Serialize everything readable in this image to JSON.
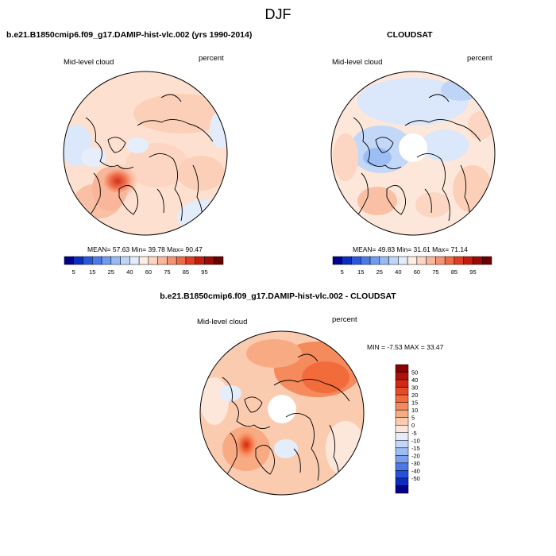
{
  "title": "DJF",
  "panels": [
    {
      "title": "b.e21.B1850cmip6.f09_g17.DAMIP-hist-vlc.002 (yrs 1990-2014)",
      "left_label": "Mid-level cloud",
      "right_label": "percent",
      "stats": "MEAN=  57.63  Min=  39.78  Max=  90.47"
    },
    {
      "title": "CLOUDSAT",
      "left_label": "Mid-level cloud",
      "right_label": "percent",
      "stats": "MEAN=  49.83  Min=  31.61  Max=  71.14"
    },
    {
      "title": "b.e21.B1850cmip6.f09_g17.DAMIP-hist-vlc.002 - CLOUDSAT",
      "left_label": "Mid-level cloud",
      "right_label": "percent",
      "stats": "MIN =  -7.53 MAX =  33.47"
    }
  ],
  "chart_data": [
    {
      "type": "heatmap",
      "projection": "north polar stereographic",
      "title": "b.e21.B1850cmip6.f09_g17.DAMIP-hist-vlc.002 (yrs 1990-2014)",
      "variable": "Mid-level cloud",
      "units": "percent",
      "mean": 57.63,
      "min": 39.78,
      "max": 90.47,
      "colorbar": {
        "orientation": "horizontal",
        "levels": [
          5,
          10,
          15,
          20,
          25,
          30,
          40,
          50,
          60,
          65,
          70,
          75,
          80,
          85,
          90,
          95
        ],
        "tick_labels": [
          "5",
          "15",
          "25",
          "40",
          "60",
          "75",
          "85",
          "95"
        ],
        "colors": [
          "#00008d",
          "#0b2ec2",
          "#2a57de",
          "#4a7be9",
          "#6f9cf0",
          "#97baf4",
          "#bed5f7",
          "#e2ecfa",
          "#fdeee4",
          "#fcd6c2",
          "#f9b69a",
          "#f59372",
          "#ef6a47",
          "#e03e22",
          "#c41b0b",
          "#9b0a05",
          "#6c0000"
        ]
      }
    },
    {
      "type": "heatmap",
      "projection": "north polar stereographic",
      "title": "CLOUDSAT",
      "variable": "Mid-level cloud",
      "units": "percent",
      "mean": 49.83,
      "min": 31.61,
      "max": 71.14,
      "colorbar": {
        "orientation": "horizontal",
        "levels": [
          5,
          10,
          15,
          20,
          25,
          30,
          40,
          50,
          60,
          65,
          70,
          75,
          80,
          85,
          90,
          95
        ],
        "tick_labels": [
          "5",
          "15",
          "25",
          "40",
          "60",
          "75",
          "85",
          "95"
        ],
        "colors": [
          "#00008d",
          "#0b2ec2",
          "#2a57de",
          "#4a7be9",
          "#6f9cf0",
          "#97baf4",
          "#bed5f7",
          "#e2ecfa",
          "#fdeee4",
          "#fcd6c2",
          "#f9b69a",
          "#f59372",
          "#ef6a47",
          "#e03e22",
          "#c41b0b",
          "#9b0a05",
          "#6c0000"
        ]
      }
    },
    {
      "type": "heatmap",
      "projection": "north polar stereographic",
      "title": "b.e21.B1850cmip6.f09_g17.DAMIP-hist-vlc.002 - CLOUDSAT",
      "variable": "Mid-level cloud",
      "units": "percent",
      "min": -7.53,
      "max": 33.47,
      "colorbar": {
        "orientation": "vertical",
        "tick_labels": [
          "50",
          "40",
          "30",
          "20",
          "15",
          "10",
          "5",
          "0",
          "-5",
          "-10",
          "-15",
          "-20",
          "-30",
          "-40",
          "-50"
        ],
        "colors": [
          "#8a0303",
          "#b0120a",
          "#d02a14",
          "#e84a24",
          "#f26b3b",
          "#f58a5c",
          "#f8ab83",
          "#fbcbb0",
          "#fde7da",
          "#e3edfb",
          "#c3d8f8",
          "#9dbef4",
          "#7aa1ef",
          "#4d79e7",
          "#2750da",
          "#0c2cc0",
          "#000088"
        ]
      }
    }
  ]
}
